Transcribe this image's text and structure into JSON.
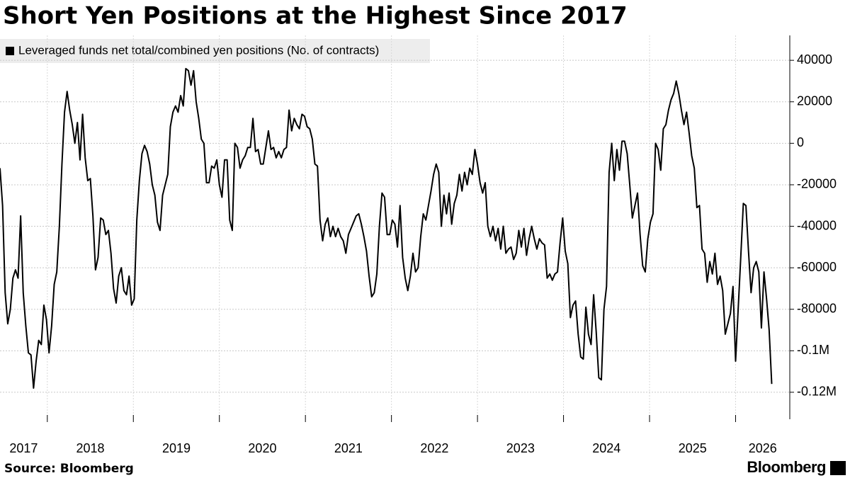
{
  "chart_data": {
    "type": "line",
    "title": "Short Yen Positions at the Highest Since 2017",
    "source": "Source: Bloomberg",
    "brand": "Bloomberg",
    "x": [
      2017.45,
      2017.48,
      2017.51,
      2017.54,
      2017.57,
      2017.6,
      2017.63,
      2017.66,
      2017.69,
      2017.72,
      2017.75,
      2017.78,
      2017.81,
      2017.84,
      2017.87,
      2017.9,
      2017.93,
      2017.96,
      2017.99,
      2018.02,
      2018.05,
      2018.08,
      2018.11,
      2018.14,
      2018.17,
      2018.2,
      2018.23,
      2018.26,
      2018.29,
      2018.32,
      2018.35,
      2018.38,
      2018.41,
      2018.44,
      2018.47,
      2018.5,
      2018.53,
      2018.56,
      2018.59,
      2018.62,
      2018.65,
      2018.68,
      2018.71,
      2018.74,
      2018.77,
      2018.8,
      2018.83,
      2018.86,
      2018.89,
      2018.92,
      2018.95,
      2018.98,
      2019.01,
      2019.04,
      2019.07,
      2019.1,
      2019.13,
      2019.16,
      2019.19,
      2019.22,
      2019.25,
      2019.28,
      2019.31,
      2019.34,
      2019.37,
      2019.4,
      2019.43,
      2019.46,
      2019.49,
      2019.52,
      2019.55,
      2019.58,
      2019.61,
      2019.64,
      2019.67,
      2019.7,
      2019.73,
      2019.76,
      2019.79,
      2019.82,
      2019.85,
      2019.88,
      2019.91,
      2019.94,
      2019.97,
      2020.0,
      2020.03,
      2020.06,
      2020.09,
      2020.12,
      2020.15,
      2020.18,
      2020.21,
      2020.24,
      2020.27,
      2020.3,
      2020.33,
      2020.36,
      2020.39,
      2020.42,
      2020.45,
      2020.48,
      2020.51,
      2020.54,
      2020.57,
      2020.6,
      2020.63,
      2020.66,
      2020.69,
      2020.72,
      2020.75,
      2020.78,
      2020.81,
      2020.84,
      2020.87,
      2020.9,
      2020.93,
      2020.96,
      2020.99,
      2021.02,
      2021.05,
      2021.08,
      2021.11,
      2021.14,
      2021.17,
      2021.2,
      2021.23,
      2021.26,
      2021.29,
      2021.32,
      2021.35,
      2021.38,
      2021.41,
      2021.44,
      2021.47,
      2021.5,
      2021.53,
      2021.56,
      2021.59,
      2021.62,
      2021.65,
      2021.68,
      2021.71,
      2021.74,
      2021.77,
      2021.8,
      2021.83,
      2021.86,
      2021.89,
      2021.92,
      2021.95,
      2021.98,
      2022.01,
      2022.04,
      2022.07,
      2022.1,
      2022.13,
      2022.16,
      2022.19,
      2022.22,
      2022.25,
      2022.28,
      2022.31,
      2022.34,
      2022.37,
      2022.4,
      2022.43,
      2022.46,
      2022.49,
      2022.52,
      2022.55,
      2022.58,
      2022.61,
      2022.64,
      2022.67,
      2022.7,
      2022.73,
      2022.76,
      2022.79,
      2022.82,
      2022.85,
      2022.88,
      2022.91,
      2022.94,
      2022.97,
      2023.0,
      2023.03,
      2023.06,
      2023.09,
      2023.12,
      2023.15,
      2023.18,
      2023.21,
      2023.24,
      2023.27,
      2023.3,
      2023.33,
      2023.36,
      2023.39,
      2023.42,
      2023.45,
      2023.48,
      2023.51,
      2023.54,
      2023.57,
      2023.6,
      2023.63,
      2023.66,
      2023.69,
      2023.72,
      2023.75,
      2023.78,
      2023.81,
      2023.84,
      2023.87,
      2023.9,
      2023.93,
      2023.96,
      2023.99,
      2024.02,
      2024.05,
      2024.08,
      2024.11,
      2024.14,
      2024.17,
      2024.2,
      2024.23,
      2024.26,
      2024.29,
      2024.32,
      2024.35,
      2024.38,
      2024.41,
      2024.44,
      2024.47,
      2024.5,
      2024.53,
      2024.56,
      2024.59,
      2024.62,
      2024.65,
      2024.68,
      2024.71,
      2024.74,
      2024.77,
      2024.8,
      2024.83,
      2024.86,
      2024.89,
      2024.92,
      2024.95,
      2024.98,
      2025.01,
      2025.04,
      2025.07,
      2025.1,
      2025.13,
      2025.16,
      2025.19,
      2025.22,
      2025.25,
      2025.28,
      2025.31,
      2025.34,
      2025.37,
      2025.4,
      2025.43,
      2025.46,
      2025.49,
      2025.52,
      2025.55,
      2025.58,
      2025.61,
      2025.64,
      2025.67,
      2025.7,
      2025.73,
      2025.76,
      2025.79,
      2025.82,
      2025.85,
      2025.88,
      2025.91,
      2025.94,
      2025.97,
      2026.0,
      2026.03,
      2026.06,
      2026.09,
      2026.12,
      2026.15,
      2026.18,
      2026.21,
      2026.24,
      2026.27,
      2026.3,
      2026.33,
      2026.36,
      2026.39,
      2026.42
    ],
    "series": [
      {
        "name": "Leveraged funds net total/combined yen positions (No. of contracts)",
        "color": "#000000",
        "values": [
          -12000,
          -30000,
          -72000,
          -87000,
          -80000,
          -65000,
          -61000,
          -65000,
          -35000,
          -72000,
          -88000,
          -101000,
          -102000,
          -118000,
          -105000,
          -95000,
          -97000,
          -78000,
          -85000,
          -101000,
          -88000,
          -68000,
          -62000,
          -40000,
          -10000,
          15000,
          25000,
          16000,
          9000,
          0,
          10000,
          -8000,
          14000,
          -7000,
          -18000,
          -17000,
          -35000,
          -61000,
          -55000,
          -36000,
          -37000,
          -44000,
          -42000,
          -53000,
          -70000,
          -77000,
          -64000,
          -60000,
          -71000,
          -73000,
          -64000,
          -78000,
          -75000,
          -37000,
          -18000,
          -5000,
          -1000,
          -4000,
          -10000,
          -20000,
          -25000,
          -38000,
          -42000,
          -25000,
          -20000,
          -15000,
          8000,
          15000,
          18000,
          15000,
          23000,
          18000,
          36000,
          35000,
          28000,
          35000,
          20000,
          12000,
          2000,
          0,
          -19000,
          -19000,
          -11000,
          -12000,
          -8000,
          -20000,
          -26000,
          -8000,
          -8000,
          -37000,
          -42000,
          0,
          -2000,
          -12000,
          -8000,
          -6000,
          -2000,
          -2000,
          12000,
          -4000,
          -3000,
          -10000,
          -10000,
          -2000,
          6000,
          -3000,
          -2000,
          -7000,
          -4000,
          -7000,
          -3000,
          -2000,
          16000,
          6000,
          12000,
          9000,
          7000,
          14000,
          13000,
          8000,
          7000,
          2000,
          -10000,
          -11000,
          -37000,
          -47000,
          -39000,
          -36000,
          -45000,
          -40000,
          -45000,
          -41000,
          -45000,
          -47000,
          -53000,
          -44000,
          -41000,
          -38000,
          -35000,
          -34000,
          -39000,
          -45000,
          -52000,
          -64000,
          -74000,
          -72000,
          -63000,
          -40000,
          -24000,
          -26000,
          -44000,
          -44000,
          -37000,
          -39000,
          -50000,
          -30000,
          -55000,
          -65000,
          -71000,
          -64000,
          -53000,
          -62000,
          -60000,
          -45000,
          -34000,
          -37000,
          -30000,
          -23000,
          -15000,
          -10000,
          -14000,
          -40000,
          -25000,
          -34000,
          -24000,
          -39000,
          -29000,
          -25000,
          -15000,
          -23000,
          -14000,
          -20000,
          -12000,
          -15000,
          -3000,
          -10000,
          -19000,
          -24000,
          -19000,
          -40000,
          -45000,
          -40000,
          -47000,
          -41000,
          -51000,
          -40000,
          -53000,
          -51000,
          -50000,
          -56000,
          -53000,
          -42000,
          -50000,
          -41000,
          -54000,
          -46000,
          -40000,
          -46000,
          -51000,
          -46000,
          -48000,
          -49000,
          -65000,
          -63000,
          -66000,
          -63000,
          -62000,
          -48000,
          -36000,
          -52000,
          -58000,
          -84000,
          -78000,
          -76000,
          -92000,
          -103000,
          -104000,
          -79000,
          -92000,
          -97000,
          -73000,
          -91000,
          -113000,
          -114000,
          -80000,
          -69000,
          -14000,
          0,
          -18000,
          -3000,
          -13000,
          1000,
          1000,
          -5000,
          -20000,
          -36000,
          -30000,
          -24000,
          -44000,
          -59000,
          -62000,
          -46000,
          -38000,
          -34000,
          0,
          -3000,
          -13000,
          7000,
          9000,
          16000,
          21000,
          24000,
          30000,
          24000,
          16000,
          9000,
          15000,
          5000,
          -6000,
          -12000,
          -31000,
          -30000,
          -51000,
          -53000,
          -67000,
          -57000,
          -63000,
          -53000,
          -68000,
          -64000,
          -71000,
          -92000,
          -87000,
          -82000,
          -69000,
          -105000,
          -80000,
          -55000,
          -29000,
          -30000,
          -52000,
          -72000,
          -60000,
          -57000,
          -62000,
          -89000,
          -62000,
          -75000,
          -90000,
          -116000
        ]
      }
    ],
    "xlim": [
      2017.45,
      2026.63
    ],
    "xticks": [
      2017,
      2018,
      2019,
      2020,
      2021,
      2022,
      2023,
      2024,
      2025,
      2026
    ],
    "ylim": [
      -133000,
      52000
    ],
    "yticks": [
      40000,
      20000,
      0,
      -20000,
      -40000,
      -60000,
      -80000,
      {
        "value": -100000,
        "label": "-0.1M"
      },
      {
        "value": -120000,
        "label": "-0.12M"
      }
    ],
    "grid": true
  }
}
